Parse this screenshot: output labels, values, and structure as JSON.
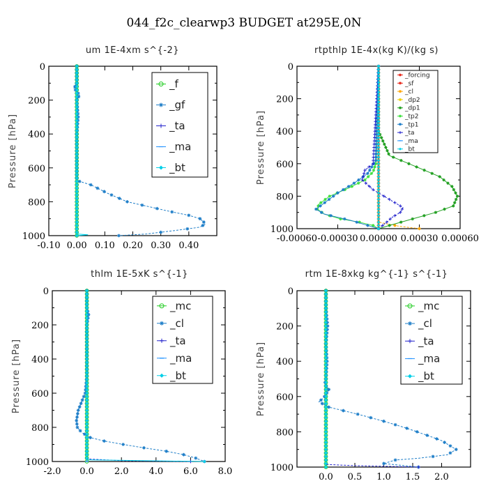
{
  "figure_title": "044_f2c_clearwp3  BUDGET at295E,0N",
  "colors": {
    "forcing": "#e8271a",
    "sf": "#e8271a",
    "cl": "#ffa500",
    "dp2": "#f0d000",
    "dp1": "#22a022",
    "tp2": "#40e040",
    "tp1": "#1e7ec8",
    "ta": "#2222cc",
    "ma": "#1e90ff",
    "bt": "#00cfe8",
    "f": "#22cc22",
    "gf": "#1e7ec8",
    "mc": "#22cc22"
  },
  "chart_data": [
    {
      "type": "line",
      "title": "um   1E-4xm s^{-2}",
      "ylabel": "Pressure [hPa]",
      "xlim": [
        -0.1,
        0.5
      ],
      "ylim": [
        1000,
        0
      ],
      "xticks": [
        "-0.10",
        "0.00",
        "0.10",
        "0.20",
        "0.30",
        "0.40"
      ],
      "yticks": [
        "0",
        "200",
        "400",
        "600",
        "800",
        "1000"
      ],
      "legend": [
        "_f",
        "_gf",
        "_ta",
        "_ma",
        "_bt"
      ],
      "series": [
        {
          "name": "_f",
          "color": "f",
          "x": [
            0.0,
            0.0
          ],
          "y": [
            0,
            1000
          ]
        },
        {
          "name": "_gf",
          "color": "gf",
          "x": [
            0.0,
            0.0,
            -0.01,
            0.0,
            0.01,
            0.0,
            0.005,
            0.0,
            0.0,
            0.0,
            0.0,
            0.0,
            0.0,
            0.0,
            0.01,
            0.05,
            0.11,
            0.18,
            0.26,
            0.34,
            0.4,
            0.44,
            0.46,
            0.44,
            0.35,
            0.25,
            0.15
          ],
          "y": [
            0,
            100,
            130,
            150,
            170,
            200,
            300,
            400,
            500,
            600,
            620,
            640,
            650,
            660,
            680,
            700,
            750,
            800,
            830,
            860,
            880,
            900,
            930,
            950,
            970,
            990,
            1000
          ]
        },
        {
          "name": "_ta",
          "color": "ta",
          "x": [
            0.0,
            0.0
          ],
          "y": [
            0,
            1000
          ]
        },
        {
          "name": "_ma",
          "color": "ma",
          "x": [
            0.0,
            0.0
          ],
          "y": [
            0,
            1000
          ]
        },
        {
          "name": "_bt",
          "color": "bt",
          "x": [
            0.0,
            0.0,
            0.04,
            0.0
          ],
          "y": [
            0,
            990,
            995,
            1000
          ]
        }
      ]
    },
    {
      "type": "line",
      "title": "rtpthlp   1E-4x(kg K)/(kg s)",
      "ylabel": "Pressure [hPa]",
      "xlim": [
        -0.0006,
        0.0006
      ],
      "ylim": [
        1000,
        0
      ],
      "xticks": [
        "-0.00060",
        "-0.00030",
        "0.00000",
        "0.00030",
        "0.00060"
      ],
      "yticks": [
        "0",
        "200",
        "400",
        "600",
        "800",
        "1000"
      ],
      "legend": [
        "_forcing",
        "_sf",
        "_cl",
        "_dp2",
        "_dp1",
        "_tp2",
        "_tp1",
        "_ta",
        "_ma",
        "_bt"
      ],
      "series": [
        {
          "name": "_forcing",
          "color": "forcing",
          "x": [
            0.0,
            0.0
          ],
          "y": [
            0,
            1000
          ]
        },
        {
          "name": "_sf",
          "color": "sf",
          "x": [
            0.0,
            0.0
          ],
          "y": [
            0,
            1000
          ]
        },
        {
          "name": "_cl",
          "color": "cl",
          "x": [
            0.0,
            0.0,
            0.00015,
            0.0003
          ],
          "y": [
            0,
            960,
            985,
            1000
          ]
        },
        {
          "name": "_dp2",
          "color": "dp2",
          "x": [
            0.0,
            0.0
          ],
          "y": [
            0,
            1000
          ]
        },
        {
          "name": "_dp1",
          "color": "dp1",
          "x": [
            0.0,
            0.0,
            0.0,
            8e-05,
            0.00028,
            0.00045,
            0.00054,
            0.00058,
            0.00055,
            0.00042,
            0.00025,
            8e-05,
            0.0
          ],
          "y": [
            0,
            300,
            400,
            550,
            620,
            680,
            740,
            800,
            860,
            900,
            940,
            980,
            1000
          ]
        },
        {
          "name": "_tp2",
          "color": "tp2",
          "x": [
            0.0,
            -2e-05,
            -4e-05,
            -0.0001,
            -0.00022,
            -0.00036,
            -0.00044,
            -0.00045,
            -0.0004,
            -0.00028,
            -0.00014,
            -4e-05,
            0.0
          ],
          "y": [
            0,
            600,
            650,
            700,
            750,
            800,
            850,
            880,
            910,
            940,
            960,
            980,
            1000
          ]
        },
        {
          "name": "_tp1",
          "color": "tp1",
          "x": [
            0.0,
            -2e-05,
            -8e-05,
            -0.00018,
            -0.0003,
            -0.00038,
            -0.00046,
            -0.0004,
            -0.0003,
            -0.0002,
            -0.0001,
            0.0
          ],
          "y": [
            0,
            580,
            660,
            720,
            780,
            830,
            880,
            910,
            930,
            950,
            975,
            1000
          ]
        },
        {
          "name": "_ta",
          "color": "ta",
          "x": [
            0.0,
            -4e-05,
            -0.0001,
            -0.00012,
            -4e-05,
            8e-05,
            0.00018,
            0.00016,
            0.0001,
            6e-05,
            0.0
          ],
          "y": [
            0,
            600,
            640,
            700,
            760,
            820,
            870,
            900,
            930,
            960,
            1000
          ]
        },
        {
          "name": "_ma",
          "color": "ma",
          "x": [
            0.0,
            0.0
          ],
          "y": [
            0,
            1000
          ]
        },
        {
          "name": "_bt",
          "color": "bt",
          "x": [
            0.0,
            0.0
          ],
          "y": [
            0,
            1000
          ]
        }
      ]
    },
    {
      "type": "line",
      "title": "thlm   1E-5xK s^{-1}",
      "ylabel": "Pressure [hPa]",
      "xlim": [
        -2.0,
        8.0
      ],
      "ylim": [
        1000,
        0
      ],
      "xticks": [
        "-2.0",
        "0.0",
        "2.0",
        "4.0",
        "6.0",
        "8.0"
      ],
      "yticks": [
        "0",
        "200",
        "400",
        "600",
        "800",
        "1000"
      ],
      "legend": [
        "_mc",
        "_cl",
        "_ta",
        "_ma",
        "_bt"
      ],
      "series": [
        {
          "name": "_mc",
          "color": "mc",
          "x": [
            0.0,
            0.0
          ],
          "y": [
            0,
            1000
          ]
        },
        {
          "name": "_cl",
          "color": "gf",
          "x": [
            0.0,
            0.0,
            0.1,
            0.0,
            0.0,
            0.0,
            0.0,
            -0.1,
            -0.3,
            -0.5,
            -0.6,
            -0.55,
            -0.3,
            0.2,
            1.0,
            2.1,
            3.3,
            4.6,
            5.6,
            6.3,
            6.8
          ],
          "y": [
            0,
            100,
            140,
            200,
            300,
            400,
            500,
            600,
            650,
            700,
            760,
            800,
            830,
            860,
            880,
            900,
            920,
            940,
            960,
            980,
            1000
          ]
        },
        {
          "name": "_ta",
          "color": "ta",
          "x": [
            0.0,
            0.0,
            2.0,
            6.0
          ],
          "y": [
            0,
            985,
            995,
            1000
          ]
        },
        {
          "name": "_ma",
          "color": "ma",
          "x": [
            0.0,
            0.0
          ],
          "y": [
            0,
            1000
          ]
        },
        {
          "name": "_bt",
          "color": "bt",
          "x": [
            0.0,
            0.0,
            6.8
          ],
          "y": [
            0,
            990,
            1000
          ]
        }
      ]
    },
    {
      "type": "line",
      "title": "rtm   1E-8xkg kg^{-1} s^{-1}",
      "ylabel": "Pressure [hPa]",
      "xlim": [
        -0.5,
        2.5
      ],
      "ylim": [
        1000,
        0
      ],
      "xticks": [
        "0.0",
        "0.5",
        "1.0",
        "1.5",
        "2.0"
      ],
      "yticks": [
        "0",
        "200",
        "400",
        "600",
        "800",
        "1000"
      ],
      "legend": [
        "_mc",
        "_cl",
        "_ta",
        "_ma",
        "_bt"
      ],
      "series": [
        {
          "name": "_mc",
          "color": "mc",
          "x": [
            0.0,
            0.0
          ],
          "y": [
            0,
            1000
          ]
        },
        {
          "name": "_cl",
          "color": "gf",
          "x": [
            0.0,
            0.0,
            0.03,
            0.0,
            0.02,
            0.0,
            -0.02,
            0.05,
            0.0,
            -0.05,
            -0.12,
            0.05,
            0.55,
            1.0,
            1.4,
            1.75,
            2.0,
            2.15,
            2.25,
            2.1,
            1.6,
            1.2,
            1.0,
            1.6
          ],
          "y": [
            0,
            100,
            200,
            300,
            400,
            500,
            530,
            560,
            590,
            610,
            630,
            660,
            700,
            740,
            780,
            820,
            850,
            880,
            900,
            930,
            950,
            960,
            980,
            1000
          ]
        },
        {
          "name": "_ta",
          "color": "ta",
          "x": [
            0.0,
            0.0,
            0.5,
            1.2,
            1.6
          ],
          "y": [
            0,
            985,
            992,
            997,
            1000
          ]
        },
        {
          "name": "_ma",
          "color": "ma",
          "x": [
            0.0,
            0.0
          ],
          "y": [
            0,
            1000
          ]
        },
        {
          "name": "_bt",
          "color": "bt",
          "x": [
            0.0,
            0.0
          ],
          "y": [
            0,
            1000
          ]
        }
      ]
    }
  ]
}
